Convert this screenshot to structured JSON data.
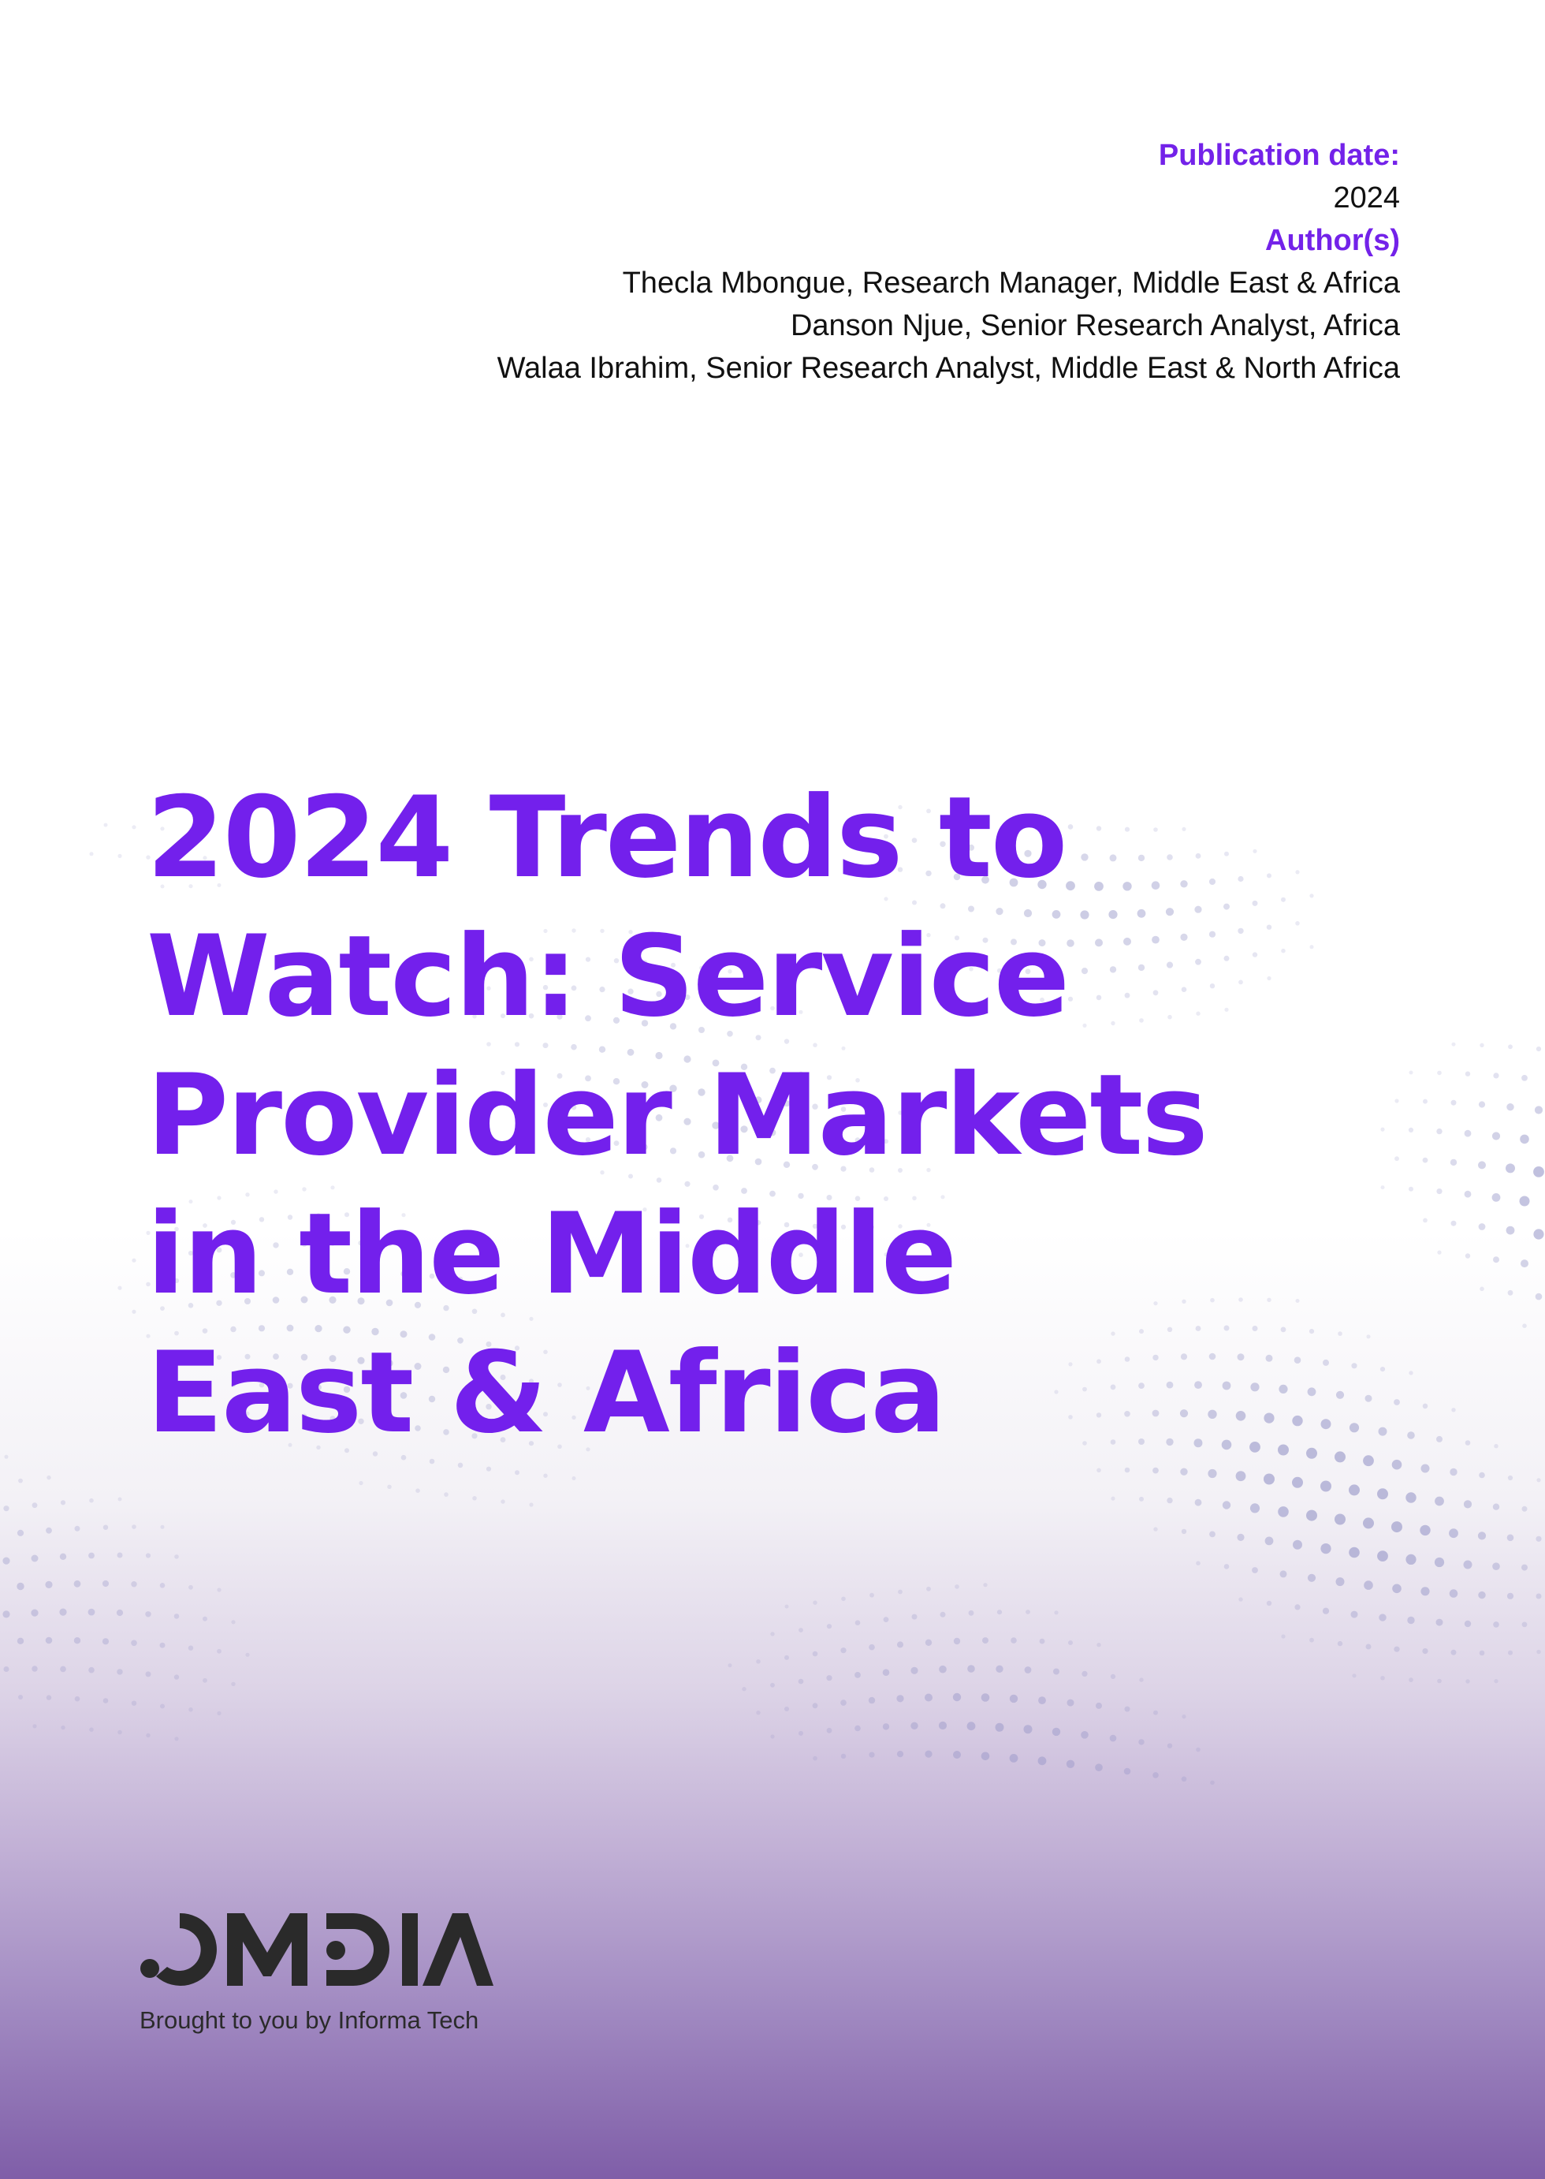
{
  "header": {
    "publication_date_label": "Publication date:",
    "publication_date_value": "2024",
    "authors_label": "Author(s)",
    "authors": [
      "Thecla Mbongue, Research Manager, Middle East & Africa",
      "Danson Njue, Senior Research Analyst, Africa",
      "Walaa Ibrahim, Senior Research Analyst, Middle East & North Africa"
    ]
  },
  "title_lines": [
    "2024 Trends to",
    "Watch: Service",
    "Provider Markets",
    "in the Middle",
    "East & Africa"
  ],
  "brand": {
    "logo_text": "OMDIA",
    "tagline": "Brought to you by Informa Tech"
  },
  "colors": {
    "accent": "#7320ec",
    "logo": "#2a2a2a",
    "gradient_bottom": "#7f5ea8"
  }
}
